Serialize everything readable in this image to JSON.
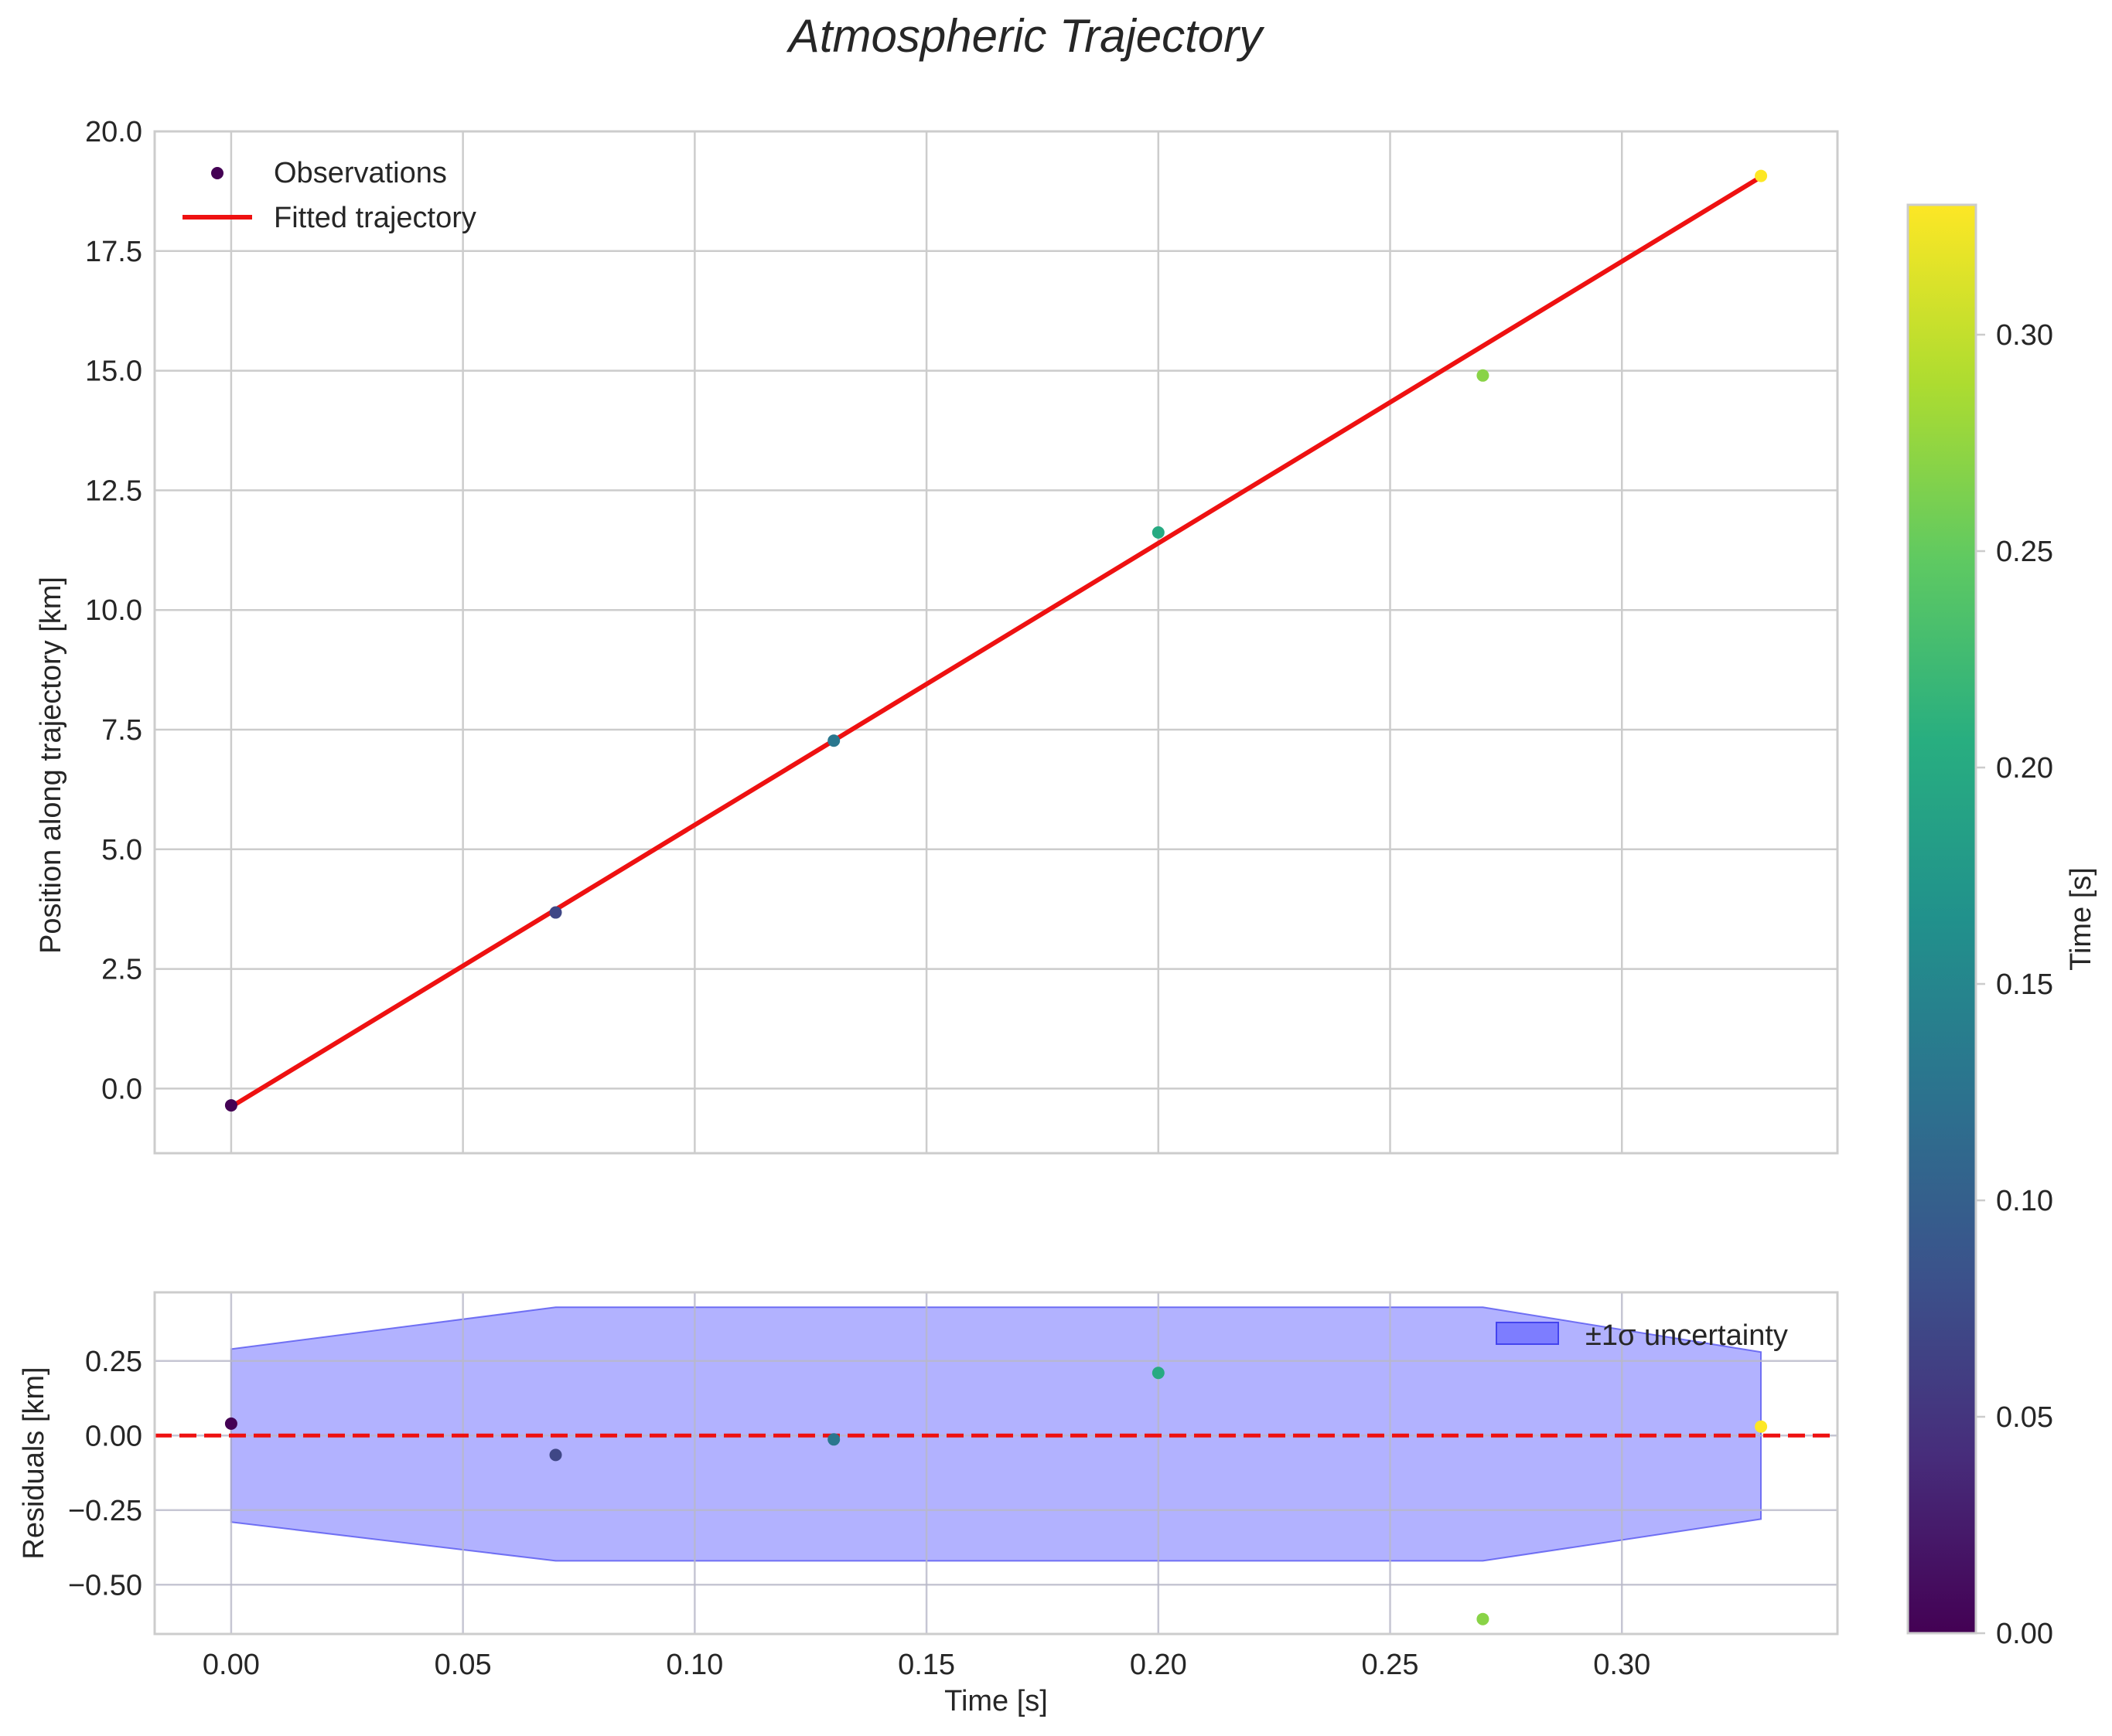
{
  "chart_data": [
    {
      "type": "scatter",
      "title": "Atmospheric Trajectory",
      "xlabel": "",
      "ylabel": "Position along trajectory [km]",
      "xlim": [
        -0.0165,
        0.3465
      ],
      "ylim": [
        -1.35,
        20.0
      ],
      "xticks": [
        0.0,
        0.05,
        0.1,
        0.15,
        0.2,
        0.25,
        0.3
      ],
      "yticks": [
        0.0,
        2.5,
        5.0,
        7.5,
        10.0,
        12.5,
        15.0,
        17.5,
        20.0
      ],
      "ytick_labels": [
        "0.0",
        "2.5",
        "5.0",
        "7.5",
        "10.0",
        "12.5",
        "15.0",
        "17.5",
        "20.0"
      ],
      "grid": true,
      "legend_position": "top-left",
      "series": [
        {
          "name": "Observations",
          "kind": "scatter",
          "x": [
            0.0,
            0.07,
            0.13,
            0.2,
            0.27,
            0.33
          ],
          "y": [
            -0.35,
            3.68,
            7.27,
            11.62,
            14.9,
            19.07
          ]
        },
        {
          "name": "Fitted trajectory",
          "kind": "line",
          "color": "#ee1111",
          "x": [
            0.0,
            0.33
          ],
          "y": [
            -0.38,
            19.05
          ]
        }
      ]
    },
    {
      "type": "scatter",
      "title": "",
      "xlabel": "Time [s]",
      "ylabel": "Residuals [km]",
      "xlim": [
        -0.0165,
        0.3465
      ],
      "ylim": [
        -0.665,
        0.48
      ],
      "xticks": [
        0.0,
        0.05,
        0.1,
        0.15,
        0.2,
        0.25,
        0.3
      ],
      "xtick_labels": [
        "0.00",
        "0.05",
        "0.10",
        "0.15",
        "0.20",
        "0.25",
        "0.30"
      ],
      "yticks": [
        -0.5,
        -0.25,
        0.0,
        0.25
      ],
      "ytick_labels": [
        "−0.50",
        "−0.25",
        "0.00",
        "0.25"
      ],
      "grid": true,
      "legend_position": "top-right",
      "series": [
        {
          "name": "Residuals",
          "kind": "scatter",
          "x": [
            0.0,
            0.07,
            0.13,
            0.2,
            0.27,
            0.33
          ],
          "y": [
            0.04,
            -0.065,
            -0.013,
            0.21,
            -0.615,
            0.03
          ]
        },
        {
          "name": "±1σ uncertainty",
          "kind": "band",
          "color": "#6666ff",
          "x": [
            0.0,
            0.07,
            0.13,
            0.2,
            0.27,
            0.33
          ],
          "upper": [
            0.29,
            0.43,
            0.43,
            0.43,
            0.43,
            0.28
          ],
          "lower": [
            -0.29,
            -0.42,
            -0.42,
            -0.42,
            -0.42,
            -0.28
          ]
        },
        {
          "name": "Zero line",
          "kind": "hline",
          "color": "#ee1111",
          "y": 0.0
        }
      ]
    },
    {
      "type": "colorbar",
      "label": "Time [s]",
      "colormap": "viridis",
      "range": [
        0.0,
        0.33
      ],
      "ticks": [
        0.0,
        0.05,
        0.1,
        0.15,
        0.2,
        0.25,
        0.3
      ],
      "tick_labels": [
        "0.00",
        "0.05",
        "0.10",
        "0.15",
        "0.20",
        "0.25",
        "0.30"
      ]
    }
  ]
}
